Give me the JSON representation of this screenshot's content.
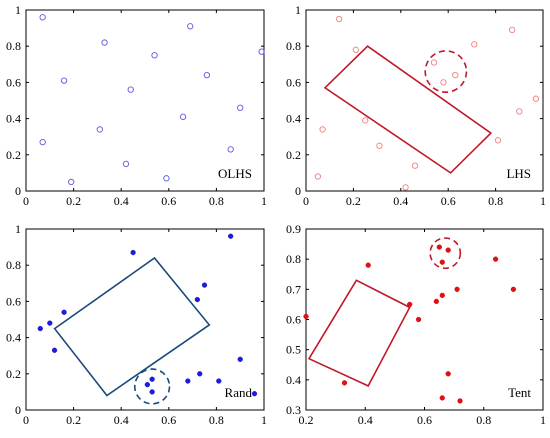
{
  "chart_data": [
    {
      "type": "scatter",
      "label": "OLHS",
      "xlim": [
        0,
        1
      ],
      "ylim": [
        0,
        1
      ],
      "x_ticks": [
        "0",
        "0.2",
        "0.4",
        "0.6",
        "0.8",
        "1"
      ],
      "y_ticks": [
        "0",
        "0.2",
        "0.4",
        "0.6",
        "0.8",
        "1"
      ],
      "marker": "open-circle",
      "color": "#5a5ae6",
      "points": [
        [
          0.07,
          0.96
        ],
        [
          0.33,
          0.82
        ],
        [
          0.16,
          0.61
        ],
        [
          0.54,
          0.75
        ],
        [
          0.69,
          0.91
        ],
        [
          0.76,
          0.64
        ],
        [
          0.99,
          0.77
        ],
        [
          0.44,
          0.56
        ],
        [
          0.07,
          0.27
        ],
        [
          0.31,
          0.34
        ],
        [
          0.66,
          0.41
        ],
        [
          0.9,
          0.46
        ],
        [
          0.42,
          0.15
        ],
        [
          0.59,
          0.07
        ],
        [
          0.19,
          0.05
        ],
        [
          0.86,
          0.23
        ]
      ],
      "shapes": []
    },
    {
      "type": "scatter",
      "label": "LHS",
      "xlim": [
        0,
        1
      ],
      "ylim": [
        0,
        1
      ],
      "x_ticks": [
        "0",
        "0.2",
        "0.4",
        "0.6",
        "0.8",
        "1"
      ],
      "y_ticks": [
        "0",
        "0.2",
        "0.4",
        "0.6",
        "0.8",
        "1"
      ],
      "marker": "open-circle",
      "color": "#f08080",
      "shape_color": "#c0182a",
      "points": [
        [
          0.14,
          0.95
        ],
        [
          0.21,
          0.78
        ],
        [
          0.25,
          0.39
        ],
        [
          0.31,
          0.25
        ],
        [
          0.07,
          0.34
        ],
        [
          0.05,
          0.08
        ],
        [
          0.42,
          0.02
        ],
        [
          0.46,
          0.14
        ],
        [
          0.54,
          0.71
        ],
        [
          0.58,
          0.6
        ],
        [
          0.63,
          0.64
        ],
        [
          0.71,
          0.81
        ],
        [
          0.87,
          0.89
        ],
        [
          0.9,
          0.44
        ],
        [
          0.97,
          0.51
        ],
        [
          0.81,
          0.28
        ]
      ],
      "shapes": [
        {
          "kind": "rect",
          "vertices": [
            [
              0.08,
              0.57
            ],
            [
              0.26,
              0.8
            ],
            [
              0.78,
              0.32
            ],
            [
              0.61,
              0.1
            ]
          ]
        },
        {
          "kind": "circle",
          "center": [
            0.59,
            0.66
          ],
          "radius": 0.087
        }
      ]
    },
    {
      "type": "scatter",
      "label": "Rand",
      "xlim": [
        0,
        1
      ],
      "ylim": [
        0,
        1
      ],
      "x_ticks": [
        "0",
        "0.2",
        "0.4",
        "0.6",
        "0.8",
        "1"
      ],
      "y_ticks": [
        "0",
        "0.2",
        "0.4",
        "0.6",
        "0.8",
        "1"
      ],
      "marker": "filled-circle",
      "color": "#1c1cdc",
      "shape_color": "#1a4a7c",
      "points": [
        [
          0.45,
          0.87
        ],
        [
          0.86,
          0.96
        ],
        [
          0.06,
          0.45
        ],
        [
          0.1,
          0.48
        ],
        [
          0.16,
          0.54
        ],
        [
          0.12,
          0.33
        ],
        [
          0.72,
          0.61
        ],
        [
          0.75,
          0.69
        ],
        [
          0.68,
          0.16
        ],
        [
          0.73,
          0.2
        ],
        [
          0.81,
          0.16
        ],
        [
          0.9,
          0.28
        ],
        [
          0.51,
          0.14
        ],
        [
          0.53,
          0.17
        ],
        [
          0.53,
          0.1
        ],
        [
          0.96,
          0.09
        ]
      ],
      "shapes": [
        {
          "kind": "rect",
          "vertices": [
            [
              0.12,
              0.45
            ],
            [
              0.54,
              0.84
            ],
            [
              0.77,
              0.47
            ],
            [
              0.34,
              0.08
            ]
          ]
        },
        {
          "kind": "circle",
          "center": [
            0.53,
            0.13
          ],
          "radius": 0.073
        }
      ]
    },
    {
      "type": "scatter",
      "label": "Tent",
      "xlim": [
        0.2,
        1
      ],
      "ylim": [
        0.3,
        0.9
      ],
      "x_ticks": [
        "0.2",
        "0.4",
        "0.6",
        "0.8",
        "1"
      ],
      "y_ticks": [
        "0.3",
        "0.4",
        "0.5",
        "0.6",
        "0.7",
        "0.8",
        "0.9"
      ],
      "marker": "filled-circle",
      "color": "#e01010",
      "shape_color": "#c0182a",
      "points": [
        [
          0.2,
          0.61
        ],
        [
          0.33,
          0.39
        ],
        [
          0.41,
          0.78
        ],
        [
          0.55,
          0.65
        ],
        [
          0.58,
          0.6
        ],
        [
          0.64,
          0.66
        ],
        [
          0.66,
          0.68
        ],
        [
          0.71,
          0.7
        ],
        [
          0.65,
          0.84
        ],
        [
          0.68,
          0.83
        ],
        [
          0.66,
          0.79
        ],
        [
          0.68,
          0.42
        ],
        [
          0.66,
          0.34
        ],
        [
          0.72,
          0.33
        ],
        [
          0.84,
          0.8
        ],
        [
          0.9,
          0.7
        ]
      ],
      "shapes": [
        {
          "kind": "rect",
          "vertices": [
            [
              0.21,
              0.47
            ],
            [
              0.37,
              0.73
            ],
            [
              0.55,
              0.64
            ],
            [
              0.41,
              0.38
            ]
          ]
        },
        {
          "kind": "circle",
          "center": [
            0.67,
            0.82
          ],
          "radius": 0.051
        }
      ]
    }
  ]
}
